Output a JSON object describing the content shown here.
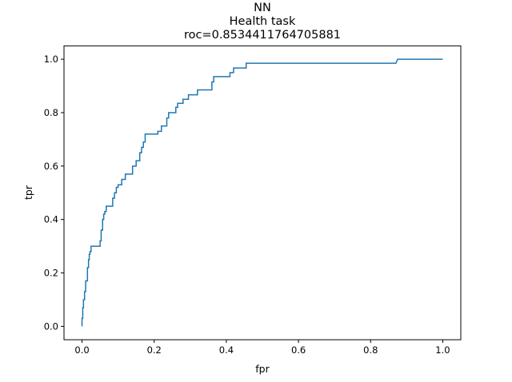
{
  "chart_data": {
    "type": "line",
    "title_lines": [
      "NN",
      "Health task",
      "roc=0.8534411764705881"
    ],
    "xlabel": "fpr",
    "ylabel": "tpr",
    "xlim": [
      -0.05,
      1.05
    ],
    "ylim": [
      -0.05,
      1.05
    ],
    "xticks": [
      0.0,
      0.2,
      0.4,
      0.6,
      0.8,
      1.0
    ],
    "xtick_labels": [
      "0.0",
      "0.2",
      "0.4",
      "0.6",
      "0.8",
      "1.0"
    ],
    "yticks": [
      0.0,
      0.2,
      0.4,
      0.6,
      0.8,
      1.0
    ],
    "ytick_labels": [
      "0.0",
      "0.2",
      "0.4",
      "0.6",
      "0.8",
      "1.0"
    ],
    "grid": false,
    "line_color": "#1f77b4",
    "series": [
      {
        "x": [
          0.0,
          0.0,
          0.002,
          0.002,
          0.004,
          0.004,
          0.007,
          0.007,
          0.01,
          0.01,
          0.015,
          0.015,
          0.018,
          0.018,
          0.02,
          0.02,
          0.022,
          0.022,
          0.025,
          0.025,
          0.03,
          0.03,
          0.05,
          0.05,
          0.053,
          0.053,
          0.057,
          0.057,
          0.06,
          0.06,
          0.063,
          0.063,
          0.067,
          0.067,
          0.07,
          0.07,
          0.085,
          0.085,
          0.09,
          0.09,
          0.095,
          0.095,
          0.1,
          0.1,
          0.11,
          0.11,
          0.12,
          0.12,
          0.14,
          0.14,
          0.15,
          0.15,
          0.16,
          0.16,
          0.165,
          0.165,
          0.17,
          0.17,
          0.175,
          0.175,
          0.21,
          0.21,
          0.22,
          0.22,
          0.235,
          0.235,
          0.24,
          0.24,
          0.26,
          0.26,
          0.265,
          0.265,
          0.28,
          0.28,
          0.295,
          0.295,
          0.32,
          0.32,
          0.36,
          0.36,
          0.365,
          0.365,
          0.41,
          0.41,
          0.42,
          0.42,
          0.455,
          0.455,
          0.87,
          0.875,
          1.0
        ],
        "y": [
          0.0,
          0.03,
          0.03,
          0.07,
          0.07,
          0.1,
          0.1,
          0.13,
          0.13,
          0.17,
          0.17,
          0.22,
          0.22,
          0.25,
          0.25,
          0.27,
          0.27,
          0.28,
          0.28,
          0.3,
          0.3,
          0.3,
          0.3,
          0.32,
          0.32,
          0.36,
          0.36,
          0.4,
          0.4,
          0.42,
          0.42,
          0.43,
          0.43,
          0.45,
          0.45,
          0.45,
          0.45,
          0.48,
          0.48,
          0.5,
          0.5,
          0.52,
          0.52,
          0.53,
          0.53,
          0.55,
          0.55,
          0.57,
          0.57,
          0.6,
          0.6,
          0.62,
          0.62,
          0.65,
          0.65,
          0.67,
          0.67,
          0.69,
          0.69,
          0.72,
          0.72,
          0.73,
          0.73,
          0.75,
          0.75,
          0.78,
          0.78,
          0.8,
          0.8,
          0.82,
          0.82,
          0.835,
          0.835,
          0.85,
          0.85,
          0.867,
          0.867,
          0.885,
          0.885,
          0.915,
          0.915,
          0.935,
          0.935,
          0.95,
          0.95,
          0.967,
          0.967,
          0.985,
          0.985,
          1.0,
          1.0
        ]
      }
    ]
  }
}
